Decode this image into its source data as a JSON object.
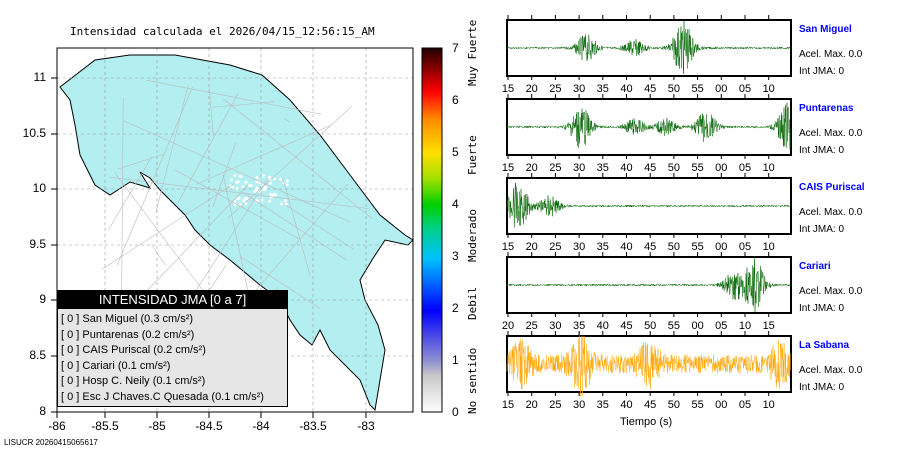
{
  "title": "Intensidad calculada el 2026/04/15_12:56:15_AM",
  "footer": "LISUCR 20260415065617",
  "map": {
    "lon_ticks": [
      "-86",
      "-85.5",
      "-85",
      "-84.5",
      "-84",
      "-83.5",
      "-83"
    ],
    "lat_ticks": [
      "11",
      "10.5",
      "10",
      "9.5",
      "9",
      "8.5",
      "8"
    ],
    "land_color": "#b3eef0"
  },
  "colorbar": {
    "ticks": [
      "0",
      "1",
      "2",
      "3",
      "4",
      "5",
      "6",
      "7"
    ],
    "labels": [
      "No sentido",
      "Debil",
      "Moderado",
      "Fuerte",
      "Muy Fuerte"
    ]
  },
  "legend": {
    "header": "INTENSIDAD JMA [0 a 7]",
    "rows": [
      "[ 0 ]  San Miguel (0.3 cm/s²)",
      "[ 0 ]  Puntarenas (0.2 cm/s²)",
      "[ 0 ]  CAIS Puriscal (0.2 cm/s²)",
      "[ 0 ]  Cariari (0.1 cm/s²)",
      "[ 0 ]  Hosp C. Neily (0.1 cm/s²)",
      "[ 0 ]  Esc J Chaves.C Quesada (0.1 cm/s²)"
    ]
  },
  "stations": [
    {
      "name": "San Miguel",
      "acel": "Acel. Max. 0.0",
      "int": "Int JMA: 0",
      "color": "#006400",
      "ticks": [
        "15",
        "20",
        "25",
        "30",
        "35",
        "40",
        "45",
        "50",
        "55",
        "00",
        "05",
        "10"
      ]
    },
    {
      "name": "Puntarenas",
      "acel": "Acel. Max. 0.0",
      "int": "Int JMA: 0",
      "color": "#006400",
      "ticks": [
        "15",
        "20",
        "25",
        "30",
        "35",
        "40",
        "45",
        "50",
        "55",
        "00",
        "05",
        "10"
      ]
    },
    {
      "name": "CAIS Puriscal",
      "acel": "Acel. Max. 0.0",
      "int": "Int JMA: 0",
      "color": "#006400",
      "ticks": [
        "15",
        "20",
        "25",
        "30",
        "35",
        "40",
        "45",
        "50",
        "55",
        "00",
        "05",
        "10"
      ]
    },
    {
      "name": "Cariari",
      "acel": "Acel. Max. 0.0",
      "int": "Int JMA: 0",
      "color": "#006400",
      "ticks": [
        "20",
        "25",
        "30",
        "35",
        "40",
        "45",
        "50",
        "55",
        "00",
        "05",
        "10",
        "15"
      ]
    },
    {
      "name": "La Sabana",
      "acel": "Acel. Max. 0.0",
      "int": "Int JMA: 0",
      "color": "#ffa500",
      "ticks": [
        "15",
        "20",
        "25",
        "30",
        "35",
        "40",
        "45",
        "50",
        "55",
        "00",
        "05",
        "10"
      ]
    }
  ],
  "xlabel": "Tiempo (s)"
}
